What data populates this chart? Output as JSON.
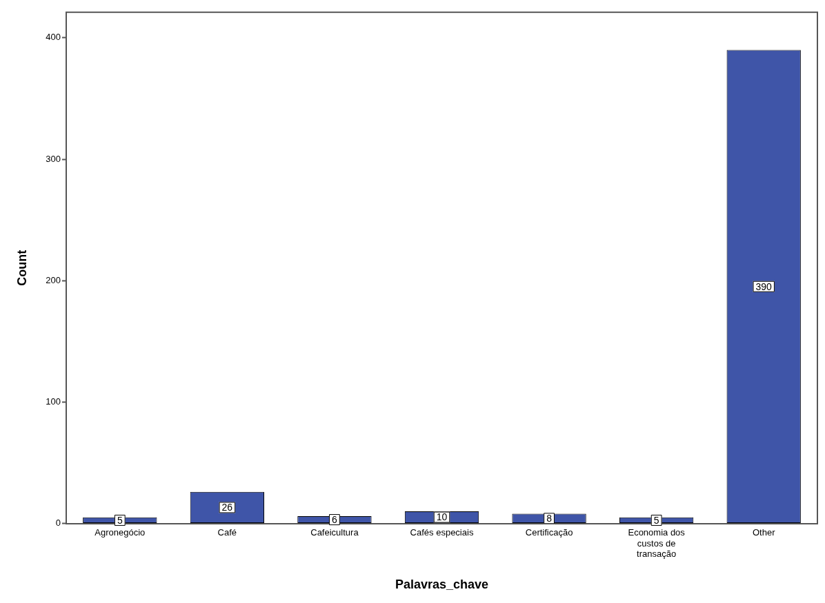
{
  "chart_data": {
    "type": "bar",
    "xlabel": "Palavras_chave",
    "ylabel": "Count",
    "categories": [
      "Agronegócio",
      "Café",
      "Cafeicultura",
      "Cafés especiais",
      "Certificação",
      "Economia dos custos de transação",
      "Other"
    ],
    "values": [
      5,
      26,
      6,
      10,
      8,
      5,
      390
    ],
    "color": "#3f55a8",
    "ylim": [
      0,
      421
    ],
    "yticks": [
      0,
      100,
      200,
      300,
      400
    ],
    "grid": false,
    "legend": false,
    "data_labels": true
  }
}
